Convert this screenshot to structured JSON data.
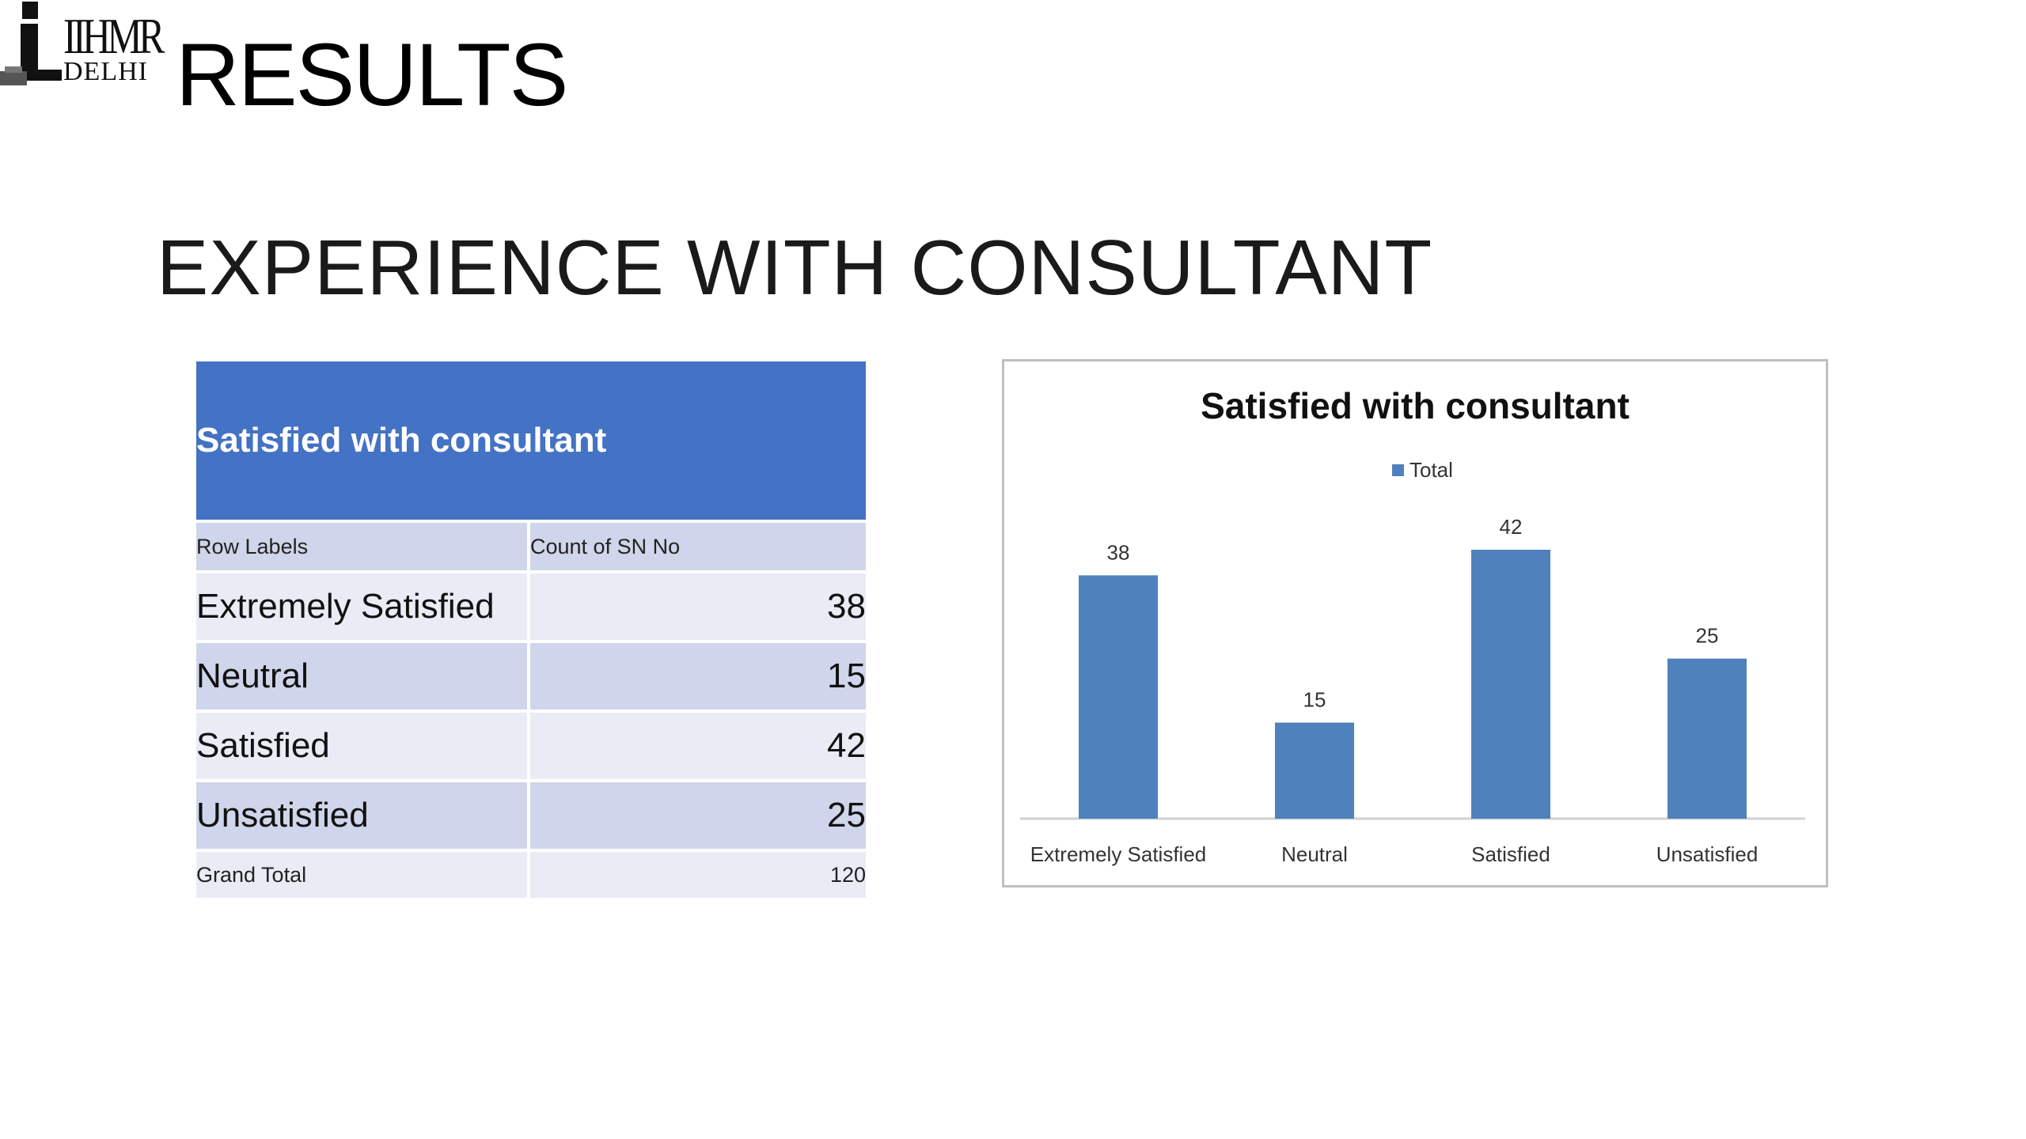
{
  "logo": {
    "line1": "IIHMR",
    "line2": "DELHI"
  },
  "slide": {
    "title": "RESULTS",
    "subtitle": "EXPERIENCE WITH CONSULTANT"
  },
  "table": {
    "title": "Satisfied with consultant",
    "col1": "Row Labels",
    "col2": "Count of SN No",
    "rows": [
      {
        "label": "Extremely Satisfied",
        "value": "38"
      },
      {
        "label": "Neutral",
        "value": "15"
      },
      {
        "label": "Satisfied",
        "value": "42"
      },
      {
        "label": "Unsatisfied",
        "value": "25"
      }
    ],
    "total_label": "Grand Total",
    "total_value": "120"
  },
  "colors": {
    "table_header": "#4472c4",
    "table_row_light": "#e9ebf5",
    "table_row_dark": "#cfd5ea",
    "bar": "#4f81bd",
    "chart_border": "#bfbfbf"
  },
  "chart_data": {
    "type": "bar",
    "title": "Satisfied with consultant",
    "categories": [
      "Extremely Satisfied",
      "Neutral",
      "Satisfied",
      "Unsatisfied"
    ],
    "series": [
      {
        "name": "Total",
        "values": [
          38,
          15,
          42,
          25
        ]
      }
    ],
    "legend": "top",
    "ylim": [
      0,
      50
    ],
    "grid": false,
    "data_labels": true
  }
}
